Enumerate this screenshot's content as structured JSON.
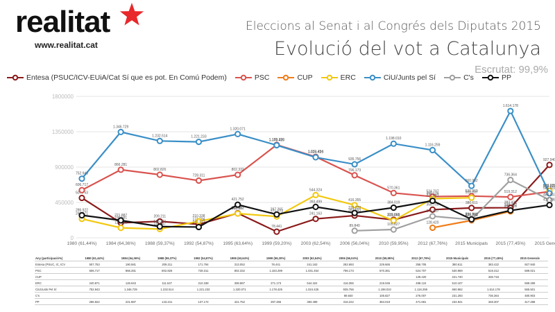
{
  "brand": {
    "name": "realitat",
    "url": "www.realitat.cat",
    "star_color": "#e8282b"
  },
  "header": {
    "subtitle": "Eleccions al Senat i al Congrés dels Diputats 2015",
    "title": "Evolució  del vot a Catalunya",
    "escrutat": "Escrutat: 99,9%"
  },
  "chart_data": {
    "type": "line",
    "categories": [
      "1980 (61,44%)",
      "1984 (64,36%)",
      "1988 (59,37%)",
      "1992 (54,87%)",
      "1995 (63,64%)",
      "1999 (59,20%)",
      "2003 (62,54%)",
      "2006 (56,04%)",
      "2010 (59,95%)",
      "2012 (67,76%)",
      "2015 Municipals",
      "2015 (77,45%)",
      "2015 Generals"
    ],
    "ylim": [
      0,
      1800000
    ],
    "yticks": [
      "0",
      "450000",
      "900000",
      "1350000",
      "1800000"
    ],
    "grid": true,
    "legend_position": "top",
    "series": [
      {
        "name": "Entesa (PSUC/ICV-EUiA/Cat Sí que es pot. En Comú Podem)",
        "color": "#8b1a1a",
        "values": [
          507753,
          190581,
          209211,
          171794,
          313052,
          78441,
          241163,
          282693,
          229665,
          358705,
          380611,
          383422,
          927940
        ]
      },
      {
        "name": "PSC",
        "color": "#d9534f",
        "values": [
          606717,
          866281,
          802826,
          728311,
          802332,
          1183299,
          1031454,
          796173,
          570361,
          524707,
          530969,
          519312,
          589021
        ]
      },
      {
        "name": "CUP",
        "color": "#f07d1a",
        "values": [
          null,
          null,
          null,
          null,
          null,
          null,
          null,
          null,
          null,
          128420,
          221740,
          336718,
          null
        ]
      },
      {
        "name": "ERC",
        "color": "#f2c811",
        "values": [
          240871,
          126943,
          111647,
          210338,
          308887,
          271173,
          544324,
          416355,
          219046,
          498124,
          510107,
          null,
          599289
        ]
      },
      {
        "name": "CiU/Junts pel Sí",
        "color": "#3a8fc7",
        "values": [
          752943,
          1346729,
          1232514,
          1221233,
          1320071,
          1178425,
          1024425,
          935756,
          1198010,
          1116259,
          660962,
          1614178,
          565501
        ]
      },
      {
        "name": "C's",
        "color": "#a0a0a0",
        "values": [
          null,
          null,
          null,
          null,
          null,
          null,
          null,
          89840,
          105827,
          275007,
          231293,
          736364,
          480903
        ]
      },
      {
        "name": "PP",
        "color": "#111111",
        "values": [
          286922,
          221887,
          143241,
          137172,
          421752,
          297265,
          393499,
          316222,
          384019,
          471681,
          234941,
          348307,
          417288
        ]
      }
    ],
    "point_labels": [
      [
        "507.753",
        "190.581",
        "209.211",
        "171.794",
        "313.052",
        "78.441",
        "241.163",
        "282.693",
        "229.665",
        "358.705",
        "380.611",
        "383.422",
        "927.940"
      ],
      [
        "606.717",
        "866.281",
        "802.826",
        "728.311",
        "802.332",
        "1.183.299",
        "1.031.454",
        "796.173",
        "570.361",
        "524.707",
        "530.969",
        "519.312",
        "589.021"
      ],
      [
        "",
        "",
        "",
        "",
        "",
        "",
        "",
        "",
        "",
        "128.420",
        "221.740",
        "336.718",
        ""
      ],
      [
        "240.871",
        "126.943",
        "111.647",
        "210.338",
        "308.887",
        "271.173",
        "544.324",
        "416.355",
        "219.046",
        "498.124",
        "510.107",
        "",
        "599.289"
      ],
      [
        "752.943",
        "1.346.729",
        "1.232.514",
        "1.221.233",
        "1.320.071",
        "1.178.425",
        "1.024.425",
        "935.756",
        "1.198.010",
        "1.116.259",
        "660.962",
        "1.614.178",
        "565.501"
      ],
      [
        "",
        "",
        "",
        "",
        "",
        "",
        "",
        "89.840",
        "105.827",
        "275.007",
        "231.293",
        "736.364",
        "480.903"
      ],
      [
        "286.922",
        "221.887",
        "143.241",
        "137.172",
        "421.752",
        "297.265",
        "393.499",
        "316.222",
        "384.019",
        "471.681",
        "234.941",
        "348.307",
        "417.288"
      ]
    ]
  },
  "table": {
    "corner": "Any (participació%)",
    "row_names": [
      "Entesa (PSUC, IC, ICV",
      "PSC",
      "CUP",
      "ERC",
      "CiU/Junts Pel Sí",
      "C's",
      "PP"
    ]
  }
}
